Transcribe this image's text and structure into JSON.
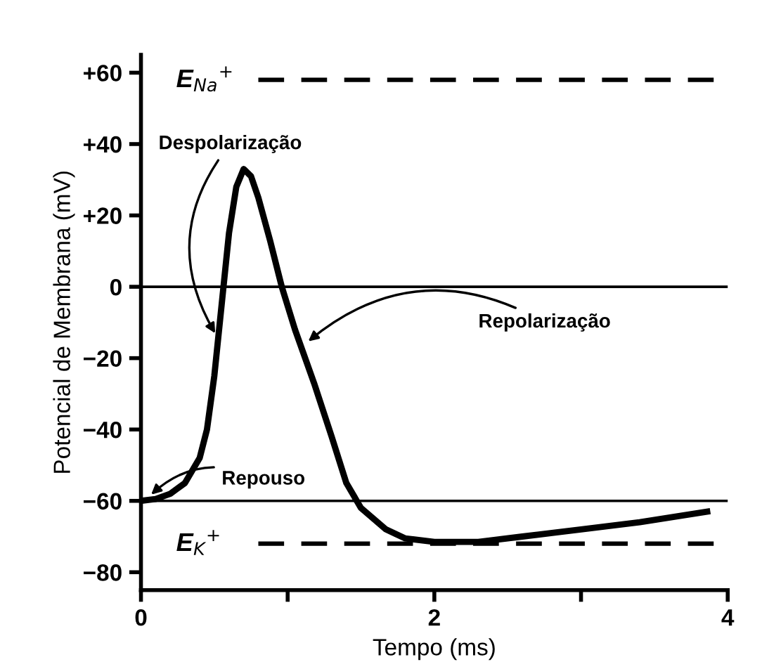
{
  "chart_data": {
    "type": "line",
    "xlabel": "Tempo (ms)",
    "ylabel": "Potencial de Membrana (mV)",
    "x": [
      0,
      0.1,
      0.2,
      0.3,
      0.4,
      0.45,
      0.5,
      0.55,
      0.6,
      0.65,
      0.7,
      0.75,
      0.8,
      0.88,
      0.96,
      1.05,
      1.18,
      1.3,
      1.4,
      1.5,
      1.67,
      1.8,
      2.0,
      2.3,
      2.6,
      3.0,
      3.4,
      3.86
    ],
    "series": [
      {
        "color": "#000000",
        "values": [
          -60,
          -59.5,
          -58,
          -55,
          -48,
          -40,
          -25,
          -5,
          15,
          28,
          33,
          31,
          25,
          13,
          0,
          -12,
          -27,
          -42,
          -55,
          -62,
          -68,
          -70.5,
          -71.5,
          -71.5,
          -70,
          -68,
          -66,
          -63
        ]
      }
    ],
    "xlim": [
      0,
      4
    ],
    "ylim": [
      -85,
      65
    ],
    "xticks": [
      0,
      {
        "value": 1,
        "label": null
      },
      2,
      {
        "value": 3,
        "label": null
      },
      4
    ],
    "yticks": [
      {
        "value": -80,
        "label": "−80"
      },
      {
        "value": -60,
        "label": "−60"
      },
      {
        "value": -40,
        "label": "−40"
      },
      {
        "value": -20,
        "label": "−20"
      },
      0,
      {
        "value": 20,
        "label": "+20"
      },
      {
        "value": 40,
        "label": "+40"
      },
      {
        "value": 60,
        "label": "+60"
      }
    ],
    "ref_lines": [
      {
        "axis": "y",
        "value": 58,
        "label": "E$_{Na}$$^{+}$",
        "line_style": "dashed"
      },
      {
        "axis": "y",
        "value": 0,
        "line_style": "solid"
      },
      {
        "axis": "y",
        "value": -60,
        "line_style": "solid"
      },
      {
        "axis": "y",
        "value": -72,
        "label": "E$_{K}$$^{+}$",
        "line_style": "dashed"
      }
    ],
    "annotations": [
      {
        "text": "Despolarização",
        "x": 0.52,
        "y": -14
      },
      {
        "text": "Repolarização",
        "x": 1.12,
        "y": -16
      },
      {
        "text": "Repouso",
        "x": 0.05,
        "y": -59
      }
    ],
    "grid": false,
    "legend": false,
    "marker": "none",
    "line_style": "solid"
  }
}
